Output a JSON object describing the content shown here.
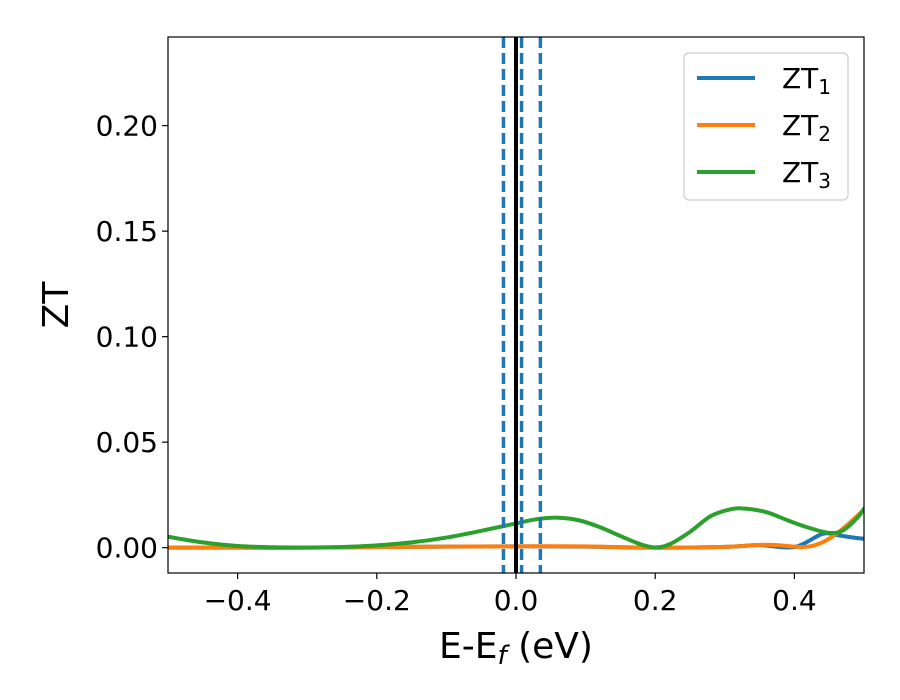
{
  "chart_data": {
    "type": "line",
    "xlabel": "E-E",
    "xlabel_sub": "f",
    "xlabel_unit": " (eV)",
    "ylabel": "ZT",
    "xlim": [
      -0.5,
      0.5
    ],
    "ylim": [
      -0.012,
      0.242
    ],
    "x_ticks": [
      -0.4,
      -0.2,
      0.0,
      0.2,
      0.4
    ],
    "x_tick_labels": [
      "−0.4",
      "−0.2",
      "0.0",
      "0.2",
      "0.4"
    ],
    "y_ticks": [
      0.0,
      0.05,
      0.1,
      0.15,
      0.2
    ],
    "y_tick_labels": [
      "0.00",
      "0.05",
      "0.10",
      "0.15",
      "0.20"
    ],
    "grid": false,
    "legend_position": "top-right",
    "series": [
      {
        "name": "ZT",
        "name_sub": "1",
        "color": "#1f77b4",
        "x": [
          -0.5,
          -0.4,
          -0.3,
          -0.2,
          -0.1,
          0.0,
          0.1,
          0.2,
          0.3,
          0.35,
          0.4,
          0.44,
          0.46,
          0.48,
          0.5
        ],
        "y": [
          0.0,
          0.0,
          0.0,
          0.0003,
          0.0005,
          0.0006,
          0.0005,
          0.0,
          0.0004,
          0.0012,
          0.0003,
          0.0065,
          0.006,
          0.005,
          0.0042
        ]
      },
      {
        "name": "ZT",
        "name_sub": "2",
        "color": "#ff7f0e",
        "x": [
          -0.5,
          -0.4,
          -0.3,
          -0.2,
          -0.1,
          0.0,
          0.05,
          0.1,
          0.2,
          0.3,
          0.36,
          0.4,
          0.42,
          0.44,
          0.46,
          0.48,
          0.5
        ],
        "y": [
          0.0,
          0.0,
          0.0,
          0.0003,
          0.0005,
          0.0006,
          0.0007,
          0.0006,
          0.0,
          0.0004,
          0.0014,
          0.0005,
          0.0005,
          0.0025,
          0.0065,
          0.012,
          0.018
        ]
      },
      {
        "name": "ZT",
        "name_sub": "3",
        "color": "#2ca02c",
        "x": [
          -0.5,
          -0.45,
          -0.4,
          -0.35,
          -0.3,
          -0.25,
          -0.2,
          -0.15,
          -0.1,
          -0.05,
          0.0,
          0.03,
          0.06,
          0.09,
          0.12,
          0.15,
          0.18,
          0.2,
          0.22,
          0.25,
          0.28,
          0.31,
          0.33,
          0.36,
          0.39,
          0.42,
          0.45,
          0.47,
          0.49,
          0.5
        ],
        "y": [
          0.0052,
          0.0025,
          0.0008,
          0.0002,
          0.0001,
          0.0003,
          0.0011,
          0.0025,
          0.0048,
          0.008,
          0.0115,
          0.0135,
          0.0142,
          0.013,
          0.0098,
          0.0055,
          0.0015,
          0.0001,
          0.0015,
          0.0075,
          0.015,
          0.0183,
          0.0185,
          0.0168,
          0.013,
          0.0095,
          0.007,
          0.0082,
          0.014,
          0.0185
        ]
      }
    ],
    "vertical_lines": [
      {
        "x": -0.018,
        "style": "dashed",
        "color": "#1f77b4"
      },
      {
        "x": 0.008,
        "style": "dashed",
        "color": "#1f77b4"
      },
      {
        "x": 0.035,
        "style": "dashed",
        "color": "#1f77b4"
      },
      {
        "x": 0.0,
        "style": "solid",
        "color": "#000000"
      }
    ]
  }
}
